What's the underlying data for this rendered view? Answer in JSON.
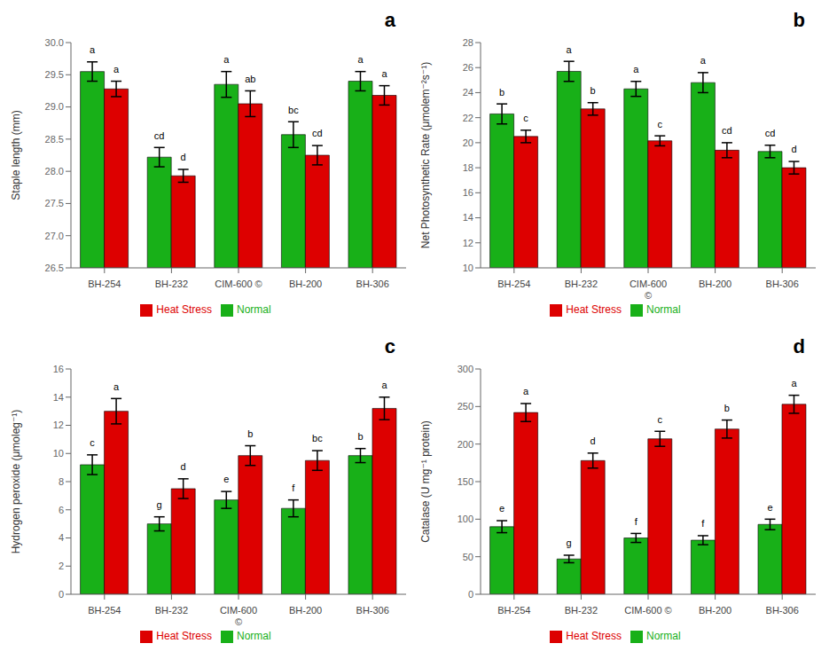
{
  "chart_data": [
    {
      "type": "bar",
      "title": "a",
      "ylabel": "Staple length (mm)",
      "categories": [
        "BH-254",
        "BH-232",
        "CIM-600 ©",
        "BH-200",
        "BH-306"
      ],
      "series": [
        {
          "name": "Normal",
          "color": "#18b018",
          "values": [
            29.55,
            28.22,
            29.35,
            28.57,
            29.4
          ],
          "errors": [
            0.15,
            0.15,
            0.2,
            0.2,
            0.15
          ],
          "letters": [
            "a",
            "cd",
            "a",
            "bc",
            "a"
          ]
        },
        {
          "name": "Heat Stress",
          "color": "#dd0000",
          "values": [
            29.28,
            27.93,
            29.05,
            28.25,
            29.18
          ],
          "errors": [
            0.12,
            0.1,
            0.2,
            0.15,
            0.15
          ],
          "letters": [
            "a",
            "d",
            "ab",
            "cd",
            "a"
          ]
        }
      ],
      "ylim": [
        26.5,
        30.0
      ],
      "yticks": [
        26.5,
        {
          "value": 27.0,
          "label": "27.0"
        },
        27.5,
        {
          "value": 28.0,
          "label": "28.0"
        },
        28.5,
        {
          "value": 29.0,
          "label": "29.0"
        },
        29.5,
        {
          "value": 30.0,
          "label": "30.0"
        }
      ],
      "grid": false,
      "legend": "bottom"
    },
    {
      "type": "bar",
      "title": "b",
      "ylabel": "Net Photosynthetic Rate (μmolem⁻²s⁻¹)",
      "categories": [
        "BH-254",
        "BH-232",
        "CIM-600\n©",
        "BH-200",
        "BH-306"
      ],
      "series": [
        {
          "name": "Normal",
          "color": "#18b018",
          "values": [
            22.3,
            25.7,
            24.3,
            24.8,
            19.3
          ],
          "errors": [
            0.8,
            0.8,
            0.6,
            0.8,
            0.5
          ],
          "letters": [
            "b",
            "a",
            "a",
            "a",
            "cd"
          ]
        },
        {
          "name": "Heat Stress",
          "color": "#dd0000",
          "values": [
            20.5,
            22.7,
            20.15,
            19.4,
            18.0
          ],
          "errors": [
            0.5,
            0.5,
            0.4,
            0.6,
            0.5
          ],
          "letters": [
            "c",
            "b",
            "c",
            "cd",
            "d"
          ]
        }
      ],
      "ylim": [
        10,
        28
      ],
      "yticks": [
        10,
        12,
        14,
        16,
        18,
        20,
        22,
        24,
        26,
        28
      ],
      "grid": false,
      "legend": "bottom"
    },
    {
      "type": "bar",
      "title": "c",
      "ylabel": "Hydrogen peroxide (μmoleg⁻¹)",
      "categories": [
        "BH-254",
        "BH-232",
        "CIM-600\n©",
        "BH-200",
        "BH-306"
      ],
      "series": [
        {
          "name": "Normal",
          "color": "#18b018",
          "values": [
            9.2,
            5.0,
            6.7,
            6.1,
            9.85
          ],
          "errors": [
            0.7,
            0.5,
            0.6,
            0.6,
            0.5
          ],
          "letters": [
            "c",
            "g",
            "e",
            "f",
            "b"
          ]
        },
        {
          "name": "Heat Stress",
          "color": "#dd0000",
          "values": [
            13.0,
            7.5,
            9.85,
            9.5,
            13.2
          ],
          "errors": [
            0.9,
            0.7,
            0.7,
            0.7,
            0.8
          ],
          "letters": [
            "a",
            "d",
            "b",
            "bc",
            "a"
          ]
        }
      ],
      "ylim": [
        0,
        16
      ],
      "yticks": [
        0,
        2,
        4,
        6,
        8,
        10,
        12,
        14,
        16
      ],
      "grid": false,
      "legend": "bottom"
    },
    {
      "type": "bar",
      "title": "d",
      "ylabel": "Catalase (U mg⁻¹ protein)",
      "categories": [
        "BH-254",
        "BH-232",
        "CIM-600 ©",
        "BH-200",
        "BH-306"
      ],
      "series": [
        {
          "name": "Normal",
          "color": "#18b018",
          "values": [
            90,
            47,
            75,
            72,
            93
          ],
          "errors": [
            8,
            5,
            6,
            6,
            7
          ],
          "letters": [
            "e",
            "g",
            "f",
            "f",
            "e"
          ]
        },
        {
          "name": "Heat Stress",
          "color": "#dd0000",
          "values": [
            242,
            178,
            207,
            220,
            253
          ],
          "errors": [
            12,
            10,
            10,
            12,
            12
          ],
          "letters": [
            "a",
            "d",
            "c",
            "b",
            "a"
          ]
        }
      ],
      "ylim": [
        0,
        300
      ],
      "yticks": [
        0,
        50,
        100,
        150,
        200,
        250,
        300
      ],
      "grid": false,
      "legend": "bottom"
    }
  ]
}
